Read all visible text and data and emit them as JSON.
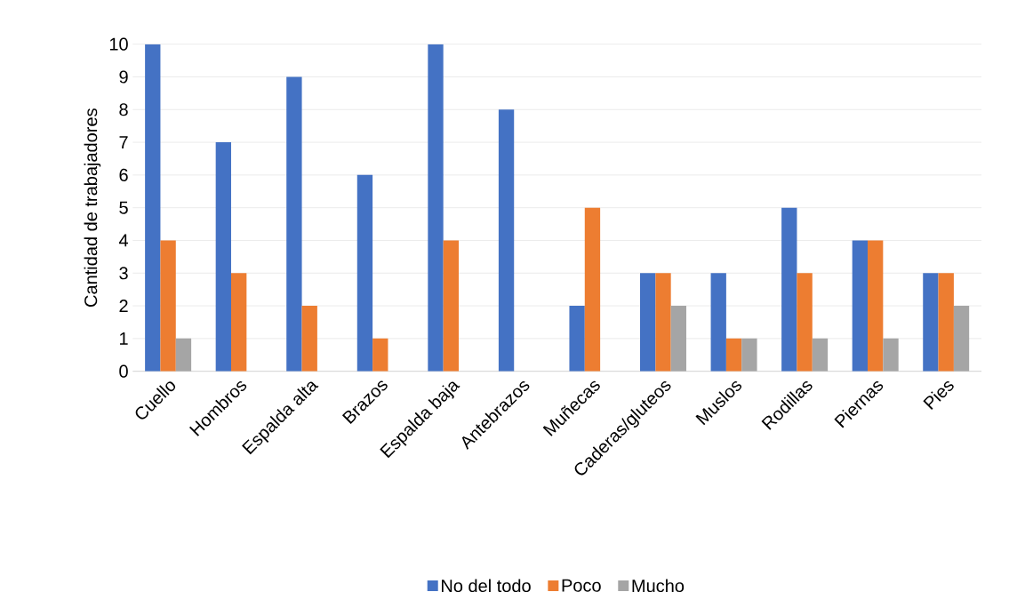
{
  "chart_data": {
    "type": "bar",
    "ylabel": "Cantidad de trabajadores",
    "categories": [
      "Cuello",
      "Hombros",
      "Espalda alta",
      "Brazos",
      "Espalda baja",
      "Antebrazos",
      "Muñecas",
      "Caderas/gluteos",
      "Muslos",
      "Rodillas",
      "Piernas",
      "Pies"
    ],
    "series": [
      {
        "name": "No del todo",
        "color": "#4472c4",
        "values": [
          10,
          7,
          9,
          6,
          10,
          8,
          2,
          3,
          3,
          5,
          4,
          3
        ]
      },
      {
        "name": "Poco",
        "color": "#ed7d31",
        "values": [
          4,
          3,
          2,
          1,
          4,
          0,
          5,
          3,
          1,
          3,
          4,
          3
        ]
      },
      {
        "name": "Mucho",
        "color": "#a5a5a5",
        "values": [
          1,
          0,
          0,
          0,
          0,
          0,
          0,
          2,
          1,
          1,
          1,
          2
        ]
      }
    ],
    "ylim": [
      0,
      10
    ],
    "yticks": [
      0,
      1,
      2,
      3,
      4,
      5,
      6,
      7,
      8,
      9,
      10
    ],
    "grid": "y",
    "legend": "bottom"
  }
}
